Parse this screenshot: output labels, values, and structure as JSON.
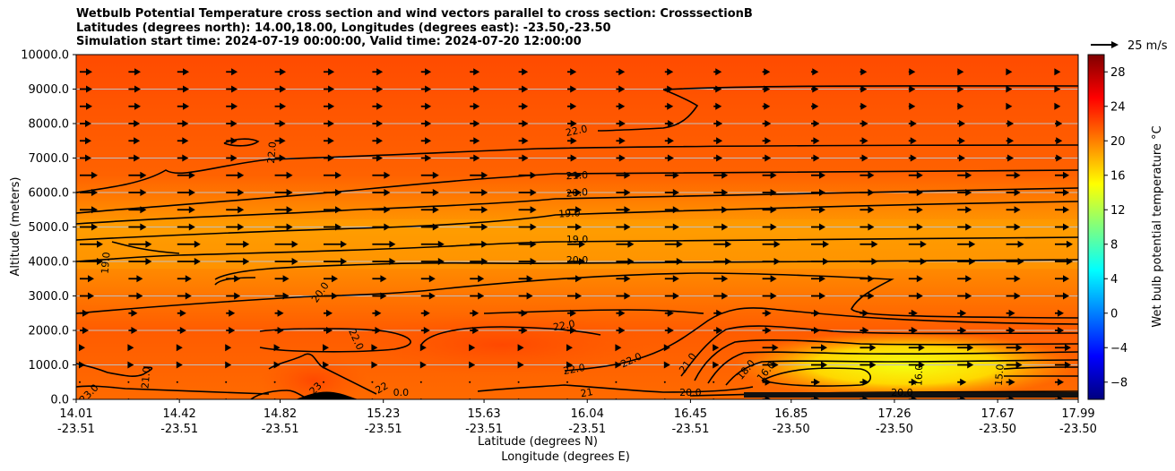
{
  "chart_data": {
    "type": "contour",
    "title": [
      "Wetbulb Potential Temperature cross section and wind vectors parallel to cross section: CrosssectionB",
      "Latitudes (degrees north): 14.00,18.00, Longitudes (degrees east): -23.50,-23.50",
      "Simulation start time: 2024-07-19 00:00:00, Valid time: 2024-07-20 12:00:00"
    ],
    "ylabel": "Altitude (meters)",
    "xlabel_lat": "Latitude (degrees N)",
    "xlabel_lon": "Longitude (degrees E)",
    "ylim": [
      0,
      10000
    ],
    "yticks": [
      "0.0",
      "1000.0",
      "2000.0",
      "3000.0",
      "4000.0",
      "5000.0",
      "6000.0",
      "7000.0",
      "8000.0",
      "9000.0",
      "10000.0"
    ],
    "xticks": [
      {
        "lat": "14.01",
        "lon": "-23.51"
      },
      {
        "lat": "14.42",
        "lon": "-23.51"
      },
      {
        "lat": "14.82",
        "lon": "-23.51"
      },
      {
        "lat": "15.23",
        "lon": "-23.51"
      },
      {
        "lat": "15.63",
        "lon": "-23.51"
      },
      {
        "lat": "16.04",
        "lon": "-23.51"
      },
      {
        "lat": "16.45",
        "lon": "-23.51"
      },
      {
        "lat": "16.85",
        "lon": "-23.50"
      },
      {
        "lat": "17.26",
        "lon": "-23.50"
      },
      {
        "lat": "17.67",
        "lon": "-23.50"
      },
      {
        "lat": "17.99",
        "lon": "-23.50"
      }
    ],
    "colorbar": {
      "label": "Wet bulb potential temperature $^\\circ$C",
      "label_text": "Wet bulb potential temperature °C",
      "range": [
        -10,
        30
      ],
      "ticks": [
        "-8",
        "-4",
        "0",
        "4",
        "8",
        "12",
        "16",
        "20",
        "24",
        "28"
      ],
      "colors": [
        "#00007f",
        "#0000ff",
        "#007fff",
        "#00ffff",
        "#7fff7f",
        "#ffff00",
        "#ff7f00",
        "#ff0000",
        "#7f0000"
      ]
    },
    "quiver_key": "25 m/s",
    "contour_labels": [
      {
        "text": "22.0",
        "lat": 16.0,
        "alt": 7700,
        "rot": -12
      },
      {
        "text": "22.0",
        "lat": 14.8,
        "alt": 7150,
        "rot": -85
      },
      {
        "text": "21.0",
        "lat": 16.0,
        "alt": 6400,
        "rot": -3
      },
      {
        "text": "20.0",
        "lat": 16.0,
        "alt": 5900,
        "rot": -4
      },
      {
        "text": "19.0",
        "lat": 15.97,
        "alt": 5300,
        "rot": -3
      },
      {
        "text": "19.0",
        "lat": 16.0,
        "alt": 4550,
        "rot": 0
      },
      {
        "text": "20.0",
        "lat": 16.0,
        "alt": 3950,
        "rot": 0
      },
      {
        "text": "19.0",
        "lat": 14.14,
        "alt": 3950,
        "rot": -85
      },
      {
        "text": "20.0",
        "lat": 14.99,
        "alt": 3050,
        "rot": -55
      },
      {
        "text": "22.0",
        "lat": 15.11,
        "alt": 1700,
        "rot": 65
      },
      {
        "text": "22.0",
        "lat": 15.95,
        "alt": 2050,
        "rot": -10
      },
      {
        "text": "22.0",
        "lat": 15.99,
        "alt": 780,
        "rot": -10
      },
      {
        "text": "22.0",
        "lat": 16.22,
        "alt": 1050,
        "rot": -25
      },
      {
        "text": "21.0",
        "lat": 14.3,
        "alt": 620,
        "rot": -85
      },
      {
        "text": "21.0",
        "lat": 16.45,
        "alt": 1000,
        "rot": -55
      },
      {
        "text": "18.0",
        "lat": 16.68,
        "alt": 800,
        "rot": -50
      },
      {
        "text": "16.0",
        "lat": 16.76,
        "alt": 750,
        "rot": -50
      },
      {
        "text": "16.0",
        "lat": 17.37,
        "alt": 700,
        "rot": -88
      },
      {
        "text": "15.0",
        "lat": 17.69,
        "alt": 700,
        "rot": -85
      },
      {
        "text": "23.0",
        "lat": 14.07,
        "alt": 100,
        "rot": -45
      },
      {
        "text": "23",
        "lat": 14.97,
        "alt": 250,
        "rot": -45
      },
      {
        "text": "22",
        "lat": 15.23,
        "alt": 250,
        "rot": -30
      },
      {
        "text": "0.0",
        "lat": 15.3,
        "alt": 100,
        "rot": 0
      },
      {
        "text": "21",
        "lat": 16.04,
        "alt": 100,
        "rot": -10
      },
      {
        "text": "20.0",
        "lat": 16.45,
        "alt": 100,
        "rot": 0
      },
      {
        "text": "20.0",
        "lat": 17.29,
        "alt": 100,
        "rot": 0
      }
    ]
  }
}
